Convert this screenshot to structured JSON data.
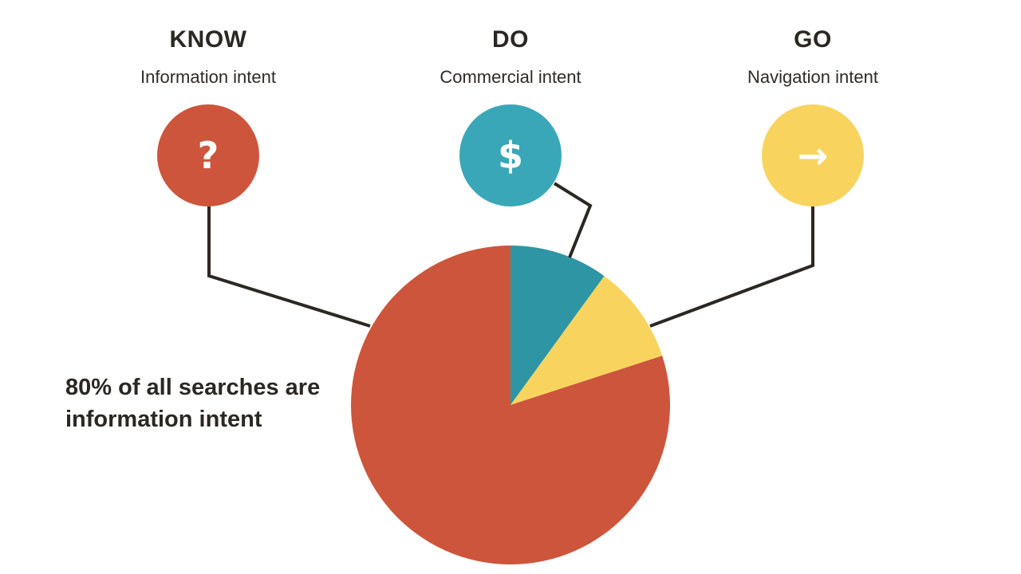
{
  "categories": [
    {
      "title": "KNOW",
      "subtitle": "Information intent",
      "icon": "question-mark-icon",
      "icon_glyph": "?",
      "color": "#cd553b"
    },
    {
      "title": "DO",
      "subtitle": "Commercial intent",
      "icon": "dollar-sign-icon",
      "icon_glyph": "$",
      "color": "#3aa7b8"
    },
    {
      "title": "GO",
      "subtitle": "Navigation intent",
      "icon": "right-arrow-icon",
      "icon_glyph": "→",
      "color": "#f8d45f"
    }
  ],
  "annotation": "80% of all searches are information intent",
  "chart_data": {
    "type": "pie",
    "slices": [
      {
        "label": "Information intent",
        "value": 80,
        "color": "#cd553b"
      },
      {
        "label": "Commercial intent",
        "value": 10,
        "color": "#2e95a5"
      },
      {
        "label": "Navigation intent",
        "value": 10,
        "color": "#f8d45f"
      }
    ],
    "start": "12 o'clock",
    "direction": "clockwise",
    "order": [
      "Commercial intent",
      "Navigation intent",
      "Information intent"
    ],
    "legend": "none",
    "connector_color": "#2b2723"
  }
}
